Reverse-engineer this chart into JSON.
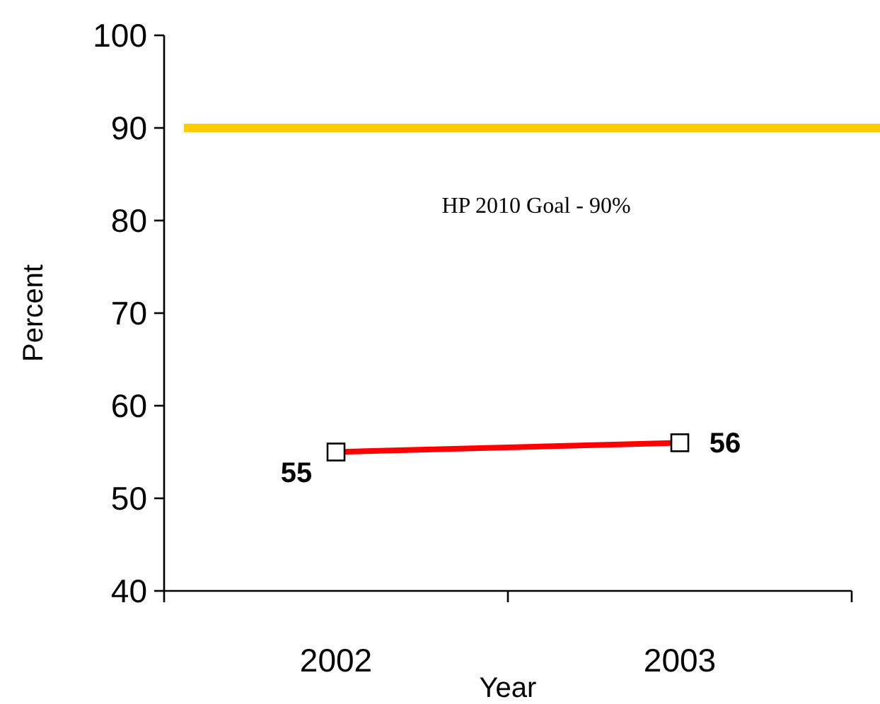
{
  "chart_data": {
    "type": "line",
    "xlabel": "Year",
    "ylabel": "Percent",
    "categories": [
      "2002",
      "2003"
    ],
    "series": [
      {
        "color": "#ff0000",
        "values": [
          55,
          56
        ]
      }
    ],
    "ylim": [
      40,
      100
    ],
    "yticks": [
      40,
      50,
      60,
      70,
      80,
      90,
      100
    ],
    "marker": "square",
    "data_labels": true,
    "grid": false,
    "ref_lines": [
      {
        "axis": "y",
        "value": 90,
        "label": "HP 2010 Goal - 90%",
        "color": "#ffcc00"
      }
    ]
  }
}
